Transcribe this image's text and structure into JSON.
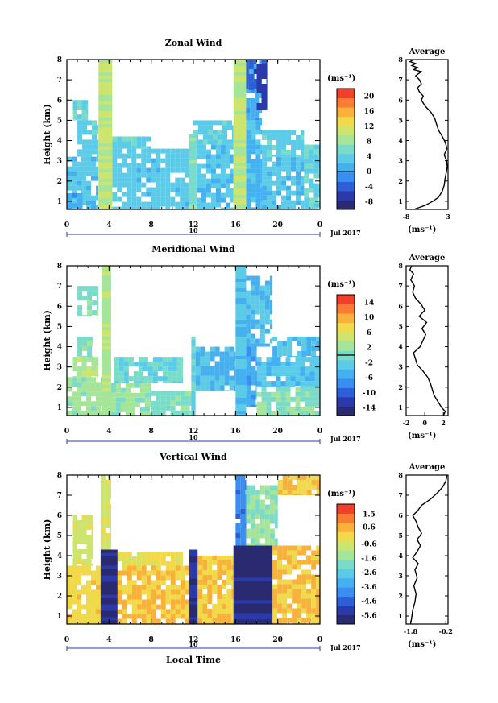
{
  "chart_data": [
    {
      "type": "heatmap",
      "title": "Zonal Wind",
      "ylabel": "Height (km)",
      "xlim": [
        0,
        24
      ],
      "ylim": [
        0.6,
        8
      ],
      "x_ticks": [
        "0",
        "4",
        "8",
        "12",
        "16",
        "20",
        "0"
      ],
      "y_ticks": [
        "1",
        "2",
        "3",
        "4",
        "5",
        "6",
        "7",
        "8"
      ],
      "date_bar": {
        "label": "10",
        "range_hours": [
          0,
          24
        ]
      },
      "date_label": "Jul 2017",
      "colorbar": {
        "unit": "(ms⁻¹)",
        "tick_labels": [
          "20",
          "16",
          "12",
          "8",
          "4",
          "0",
          "-4",
          "-8"
        ],
        "range": [
          -10,
          22
        ],
        "zero_line": 0,
        "colors": [
          "#2a2a70",
          "#2a3aa8",
          "#2f5fd8",
          "#3a8ef0",
          "#45b0f0",
          "#5ccbe8",
          "#7adbc8",
          "#a5e59a",
          "#cde46e",
          "#f0d94a",
          "#f8b23c",
          "#f87c34",
          "#f0402c"
        ]
      },
      "rain_streaks": [
        {
          "x0": 3.0,
          "x1": 4.3,
          "top": 8.0,
          "value": 10
        },
        {
          "x0": 11.6,
          "x1": 12.3,
          "top": 4.3,
          "value": 6
        },
        {
          "x0": 15.8,
          "x1": 17.0,
          "top": 8.0,
          "value": 10
        }
      ],
      "blocks": [
        {
          "x0": 0.0,
          "x1": 3.0,
          "y0": 0.6,
          "y1": 3.2,
          "v": 3
        },
        {
          "x0": 0.0,
          "x1": 1.5,
          "y0": 0.6,
          "y1": 1.4,
          "v": 0.5
        },
        {
          "x0": 1.0,
          "x1": 3.0,
          "y0": 3.2,
          "y1": 5.0,
          "v": 4
        },
        {
          "x0": 0.5,
          "x1": 2.0,
          "y0": 5.0,
          "y1": 6.0,
          "v": 5
        },
        {
          "x0": 4.3,
          "x1": 11.6,
          "y0": 0.6,
          "y1": 3.6,
          "v": 3.5
        },
        {
          "x0": 4.3,
          "x1": 8.0,
          "y0": 3.6,
          "y1": 4.2,
          "v": 4
        },
        {
          "x0": 12.3,
          "x1": 15.8,
          "y0": 0.6,
          "y1": 3.8,
          "v": 3
        },
        {
          "x0": 12.0,
          "x1": 15.8,
          "y0": 3.8,
          "y1": 5.0,
          "v": 4
        },
        {
          "x0": 16.0,
          "x1": 18.5,
          "y0": 5.0,
          "y1": 8.0,
          "v": 1
        },
        {
          "x0": 16.8,
          "x1": 18.0,
          "y0": 6.5,
          "y1": 8.0,
          "v": -4
        },
        {
          "x0": 18.0,
          "x1": 19.0,
          "y0": 5.5,
          "y1": 8.0,
          "v": -6
        },
        {
          "x0": 17.0,
          "x1": 18.5,
          "y0": 0.6,
          "y1": 5.0,
          "v": 2
        },
        {
          "x0": 18.5,
          "x1": 22.5,
          "y0": 0.6,
          "y1": 3.2,
          "v": 2.5
        },
        {
          "x0": 18.5,
          "x1": 22.5,
          "y0": 3.2,
          "y1": 4.5,
          "v": 4
        },
        {
          "x0": 22.5,
          "x1": 24.0,
          "y0": 0.6,
          "y1": 3.8,
          "v": 5
        }
      ],
      "average_profile": {
        "title": "Average",
        "xlabel": "(ms⁻¹)",
        "x_ticks": [
          "-8",
          "3"
        ],
        "xlim": [
          -8,
          3
        ],
        "ylim": [
          0.6,
          8
        ],
        "y_ticks": [
          "1",
          "2",
          "3",
          "4",
          "5",
          "6",
          "7",
          "8"
        ],
        "x": [
          -6.0,
          -3.0,
          -1.0,
          0.5,
          1.5,
          2.0,
          2.2,
          2.5,
          2.8,
          2.6,
          2.0,
          2.7,
          2.3,
          1.5,
          0.5,
          0.0,
          -0.5,
          -1.5,
          -3.0,
          -4.0,
          -3.5,
          -4.5,
          -5.0,
          -4.0,
          -4.5,
          -5.5,
          -4.0,
          -6.0,
          -5.0,
          -6.5,
          -5.5,
          -7.0,
          -6.0
        ],
        "y": [
          0.6,
          0.8,
          1.0,
          1.2,
          1.5,
          1.8,
          2.1,
          2.4,
          2.7,
          3.0,
          3.3,
          3.6,
          3.9,
          4.2,
          4.5,
          4.8,
          5.1,
          5.4,
          5.7,
          6.0,
          6.2,
          6.4,
          6.6,
          6.8,
          7.0,
          7.2,
          7.4,
          7.5,
          7.6,
          7.7,
          7.8,
          7.9,
          8.0
        ]
      }
    },
    {
      "type": "heatmap",
      "title": "Meridional Wind",
      "ylabel": "Height (km)",
      "xlim": [
        0,
        24
      ],
      "ylim": [
        0.6,
        8
      ],
      "x_ticks": [
        "0",
        "4",
        "8",
        "12",
        "16",
        "20",
        "0"
      ],
      "y_ticks": [
        "1",
        "2",
        "3",
        "4",
        "5",
        "6",
        "7",
        "8"
      ],
      "date_bar": {
        "label": "10",
        "range_hours": [
          0,
          24
        ]
      },
      "date_label": "Jul 2017",
      "colorbar": {
        "unit": "(ms⁻¹)",
        "tick_labels": [
          "14",
          "10",
          "6",
          "2",
          "-2",
          "-6",
          "-10",
          "-14"
        ],
        "range": [
          -16,
          16
        ],
        "zero_line": 0,
        "colors": [
          "#2a2a70",
          "#2a3aa8",
          "#2f5fd8",
          "#3a8ef0",
          "#45b0f0",
          "#5ccbe8",
          "#7adbc8",
          "#a5e59a",
          "#cde46e",
          "#f0d94a",
          "#f8b23c",
          "#f87c34",
          "#f0402c"
        ]
      },
      "rain_streaks": [
        {
          "x0": 3.3,
          "x1": 4.2,
          "top": 8.0,
          "value": 3
        },
        {
          "x0": 11.8,
          "x1": 12.2,
          "top": 4.5,
          "value": -2
        },
        {
          "x0": 16.0,
          "x1": 17.0,
          "top": 8.0,
          "value": -3
        }
      ],
      "blocks": [
        {
          "x0": 0.0,
          "x1": 3.5,
          "y0": 0.6,
          "y1": 2.5,
          "v": 2
        },
        {
          "x0": 0.5,
          "x1": 3.0,
          "y0": 2.5,
          "y1": 3.5,
          "v": 3
        },
        {
          "x0": 1.0,
          "x1": 2.5,
          "y0": 3.5,
          "y1": 4.5,
          "v": 1
        },
        {
          "x0": 1.0,
          "x1": 3.0,
          "y0": 5.5,
          "y1": 7.0,
          "v": 0.5
        },
        {
          "x0": 4.2,
          "x1": 8.0,
          "y0": 0.6,
          "y1": 2.2,
          "v": 1.5
        },
        {
          "x0": 4.5,
          "x1": 11.0,
          "y0": 2.2,
          "y1": 3.5,
          "v": -1
        },
        {
          "x0": 8.0,
          "x1": 11.8,
          "y0": 0.6,
          "y1": 1.8,
          "v": 0.5
        },
        {
          "x0": 12.2,
          "x1": 16.0,
          "y0": 1.8,
          "y1": 4.0,
          "v": -4
        },
        {
          "x0": 16.5,
          "x1": 19.5,
          "y0": 4.0,
          "y1": 7.5,
          "v": -4
        },
        {
          "x0": 17.0,
          "x1": 18.0,
          "y0": 1.0,
          "y1": 4.0,
          "v": -6
        },
        {
          "x0": 18.0,
          "x1": 24.0,
          "y0": 2.0,
          "y1": 3.5,
          "v": -3
        },
        {
          "x0": 19.5,
          "x1": 24.0,
          "y0": 3.5,
          "y1": 4.5,
          "v": -4
        },
        {
          "x0": 18.0,
          "x1": 24.0,
          "y0": 0.6,
          "y1": 2.0,
          "v": 1
        }
      ],
      "average_profile": {
        "title": "Average",
        "xlabel": "(ms⁻¹)",
        "x_ticks": [
          "-2",
          "0",
          "2"
        ],
        "xlim": [
          -2,
          2.5
        ],
        "ylim": [
          0.6,
          8
        ],
        "y_ticks": [
          "1",
          "2",
          "3",
          "4",
          "5",
          "6",
          "7",
          "8"
        ],
        "x": [
          2.0,
          2.2,
          1.8,
          1.4,
          1.0,
          0.8,
          0.6,
          0.3,
          -0.2,
          -0.8,
          -1.0,
          -1.2,
          -0.5,
          -0.2,
          0.1,
          -0.3,
          0.2,
          -0.6,
          0.0,
          -0.4,
          -1.0,
          -1.3,
          -1.1,
          -1.5,
          -1.2,
          -1.6,
          -1.4
        ],
        "y": [
          0.6,
          0.8,
          1.0,
          1.3,
          1.6,
          1.9,
          2.2,
          2.5,
          2.8,
          3.1,
          3.4,
          3.7,
          4.0,
          4.3,
          4.6,
          4.9,
          5.2,
          5.5,
          5.8,
          6.1,
          6.4,
          6.7,
          7.0,
          7.3,
          7.6,
          7.8,
          8.0
        ]
      }
    },
    {
      "type": "heatmap",
      "title": "Vertical Wind",
      "xlabel": "Local Time",
      "ylabel": "Height (km)",
      "xlim": [
        0,
        24
      ],
      "ylim": [
        0.6,
        8
      ],
      "x_ticks": [
        "0",
        "4",
        "8",
        "12",
        "16",
        "20",
        "0"
      ],
      "y_ticks": [
        "1",
        "2",
        "3",
        "4",
        "5",
        "6",
        "7",
        "8"
      ],
      "date_bar": {
        "label": "10",
        "range_hours": [
          0,
          24
        ]
      },
      "date_label": "Jul 2017",
      "colorbar": {
        "unit": "(ms⁻¹)",
        "tick_labels": [
          "1.5",
          "0.6",
          "-0.6",
          "-1.6",
          "-2.6",
          "-3.6",
          "-4.6",
          "-5.6"
        ],
        "range": [
          -6.2,
          2.2
        ],
        "zero_line": null,
        "colors": [
          "#2a2a70",
          "#2a3aa8",
          "#2f5fd8",
          "#3a8ef0",
          "#45b0f0",
          "#5ccbe8",
          "#7adbc8",
          "#a5e59a",
          "#cde46e",
          "#f0d94a",
          "#f8b23c",
          "#f87c34",
          "#f0402c"
        ]
      },
      "rain_streaks": [
        {
          "x0": 3.2,
          "x1": 4.8,
          "top": 4.3,
          "value": -5.8
        },
        {
          "x0": 11.6,
          "x1": 12.4,
          "top": 4.3,
          "value": -5.5
        },
        {
          "x0": 15.8,
          "x1": 19.5,
          "top": 4.5,
          "value": -5.8
        }
      ],
      "blocks": [
        {
          "x0": 0.0,
          "x1": 3.2,
          "y0": 0.6,
          "y1": 3.5,
          "v": 0.0
        },
        {
          "x0": 0.5,
          "x1": 2.5,
          "y0": 3.5,
          "y1": 6.0,
          "v": -0.6
        },
        {
          "x0": 4.8,
          "x1": 11.6,
          "y0": 0.6,
          "y1": 3.5,
          "v": 0.3
        },
        {
          "x0": 4.8,
          "x1": 11.0,
          "y0": 3.5,
          "y1": 4.2,
          "v": -0.2
        },
        {
          "x0": 12.4,
          "x1": 15.8,
          "y0": 0.6,
          "y1": 4.0,
          "v": 0.3
        },
        {
          "x0": 19.5,
          "x1": 24.0,
          "y0": 0.6,
          "y1": 4.5,
          "v": 0.3
        },
        {
          "x0": 16.5,
          "x1": 20.0,
          "y0": 4.5,
          "y1": 7.5,
          "v": -1.6
        },
        {
          "x0": 16.0,
          "x1": 17.0,
          "y0": 4.5,
          "y1": 8.0,
          "v": -4.0
        },
        {
          "x0": 3.2,
          "x1": 4.2,
          "y0": 4.3,
          "y1": 8.0,
          "v": -0.5
        },
        {
          "x0": 20.0,
          "x1": 24.0,
          "y0": 7.0,
          "y1": 8.0,
          "v": 0.2
        }
      ],
      "average_profile": {
        "title": "Average",
        "xlabel": "(ms⁻¹)",
        "x_ticks": [
          "-1.8",
          "-0.2"
        ],
        "xlim": [
          -2.0,
          -0.1
        ],
        "ylim": [
          0.6,
          8
        ],
        "y_ticks": [
          "1",
          "2",
          "3",
          "4",
          "5",
          "6",
          "7",
          "8"
        ],
        "x": [
          -1.8,
          -1.75,
          -1.7,
          -1.6,
          -1.55,
          -1.65,
          -1.5,
          -1.6,
          -1.45,
          -1.7,
          -1.5,
          -1.35,
          -1.5,
          -1.3,
          -1.45,
          -1.55,
          -1.7,
          -1.5,
          -1.3,
          -0.9,
          -0.6,
          -0.35,
          -0.2,
          -0.15
        ],
        "y": [
          0.6,
          0.9,
          1.3,
          1.7,
          2.1,
          2.5,
          2.9,
          3.3,
          3.6,
          3.9,
          4.2,
          4.5,
          4.8,
          5.1,
          5.4,
          5.7,
          6.0,
          6.2,
          6.5,
          6.8,
          7.1,
          7.4,
          7.7,
          8.0
        ]
      }
    }
  ]
}
